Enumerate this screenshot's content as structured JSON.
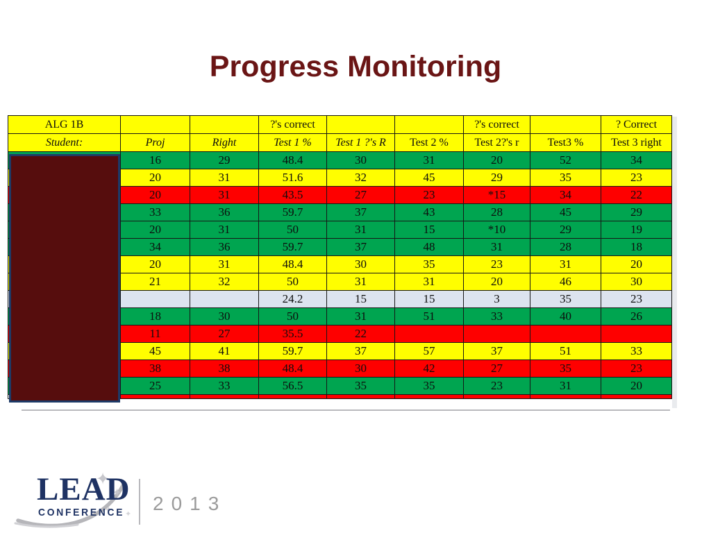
{
  "title": "Progress Monitoring",
  "table": {
    "header_row1": [
      "ALG 1B",
      "",
      "",
      "?'s correct",
      "",
      "",
      "?'s correct",
      "",
      "? Correct"
    ],
    "header_row2": [
      "Student:",
      "Proj",
      "Right",
      "Test 1 %",
      "Test 1 ?'s R",
      "Test 2 %",
      "Test 2?'s r",
      "Test3 %",
      "Test 3 right"
    ],
    "rows": [
      {
        "color": "green",
        "cells": [
          "",
          "16",
          "29",
          "48.4",
          "30",
          "31",
          "20",
          "52",
          "34"
        ]
      },
      {
        "color": "yellow",
        "cells": [
          "",
          "20",
          "31",
          "51.6",
          "32",
          "45",
          "29",
          "35",
          "23"
        ]
      },
      {
        "color": "red",
        "cells": [
          "",
          "20",
          "31",
          "43.5",
          "27",
          "23",
          "*15",
          "34",
          "22"
        ]
      },
      {
        "color": "green",
        "cells": [
          "",
          "33",
          "36",
          "59.7",
          "37",
          "43",
          "28",
          "45",
          "29"
        ]
      },
      {
        "color": "green",
        "cells": [
          "",
          "20",
          "31",
          "50",
          "31",
          "15",
          "*10",
          "29",
          "19"
        ]
      },
      {
        "color": "green",
        "cells": [
          "",
          "34",
          "36",
          "59.7",
          "37",
          "48",
          "31",
          "28",
          "18"
        ]
      },
      {
        "color": "yellow",
        "cells": [
          "",
          "20",
          "31",
          "48.4",
          "30",
          "35",
          "23",
          "31",
          "20"
        ]
      },
      {
        "color": "yellow",
        "cells": [
          "",
          "21",
          "32",
          "50",
          "31",
          "31",
          "20",
          "46",
          "30"
        ]
      },
      {
        "color": "lightblue",
        "cells": [
          "",
          "",
          "",
          "24.2",
          "15",
          "15",
          "3",
          "35",
          "23"
        ]
      },
      {
        "color": "green",
        "cells": [
          "",
          "18",
          "30",
          "50",
          "31",
          "51",
          "33",
          "40",
          "26"
        ]
      },
      {
        "color": "red",
        "cells": [
          "",
          "11",
          "27",
          "35.5",
          "22",
          "",
          "",
          "",
          ""
        ]
      },
      {
        "color": "yellow",
        "cells": [
          "",
          "45",
          "41",
          "59.7",
          "37",
          "57",
          "37",
          "51",
          "33"
        ]
      },
      {
        "color": "red",
        "cells": [
          "",
          "38",
          "38",
          "48.4",
          "30",
          "42",
          "27",
          "35",
          "23"
        ]
      },
      {
        "color": "green",
        "cells": [
          "",
          "25",
          "33",
          "56.5",
          "35",
          "35",
          "23",
          "31",
          "20"
        ]
      }
    ],
    "partial_row": {
      "color": "red"
    }
  },
  "colors": {
    "header_yellow": "#ffff00",
    "green": "#00a550",
    "yellow": "#fffe00",
    "red": "#fe0000",
    "lightblue": "#dce3ef",
    "white": "#ffffff",
    "title_maroon": "#6a1515",
    "redaction_fill": "#560d0d",
    "redaction_border": "#1e3a67",
    "logo_navy": "#1e3263",
    "logo_gray": "#9b9b9b"
  },
  "logo": {
    "name": "LEAD",
    "subtitle": "CONFERENCE",
    "year": "2013"
  }
}
